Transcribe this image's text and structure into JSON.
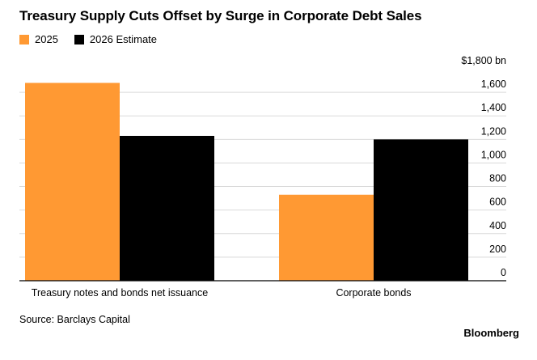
{
  "title": "Treasury Supply Cuts Offset by Surge in Corporate Debt Sales",
  "source": "Source: Barclays Capital",
  "brand": "Bloomberg",
  "colors": {
    "s2025": "#ff9933",
    "s2026": "#000000",
    "grid": "#d9d9d9",
    "axis": "#000000"
  },
  "chart_data": {
    "type": "bar",
    "categories": [
      "Treasury notes and bonds net issuance",
      "Corporate bonds"
    ],
    "series": [
      {
        "name": "2025",
        "values": [
          1680,
          730
        ]
      },
      {
        "name": "2026 Estimate",
        "values": [
          1230,
          1200
        ]
      }
    ],
    "ylim": [
      0,
      1800
    ],
    "unit": "bn",
    "yticks": [
      0,
      200,
      400,
      600,
      800,
      1000,
      1200,
      1400,
      1600,
      1800
    ],
    "ytick_labels": [
      "0",
      "200",
      "400",
      "600",
      "800",
      "1,000",
      "1,200",
      "1,400",
      "1,600",
      "$1,800 bn"
    ],
    "grid": true,
    "legend_position": "top-left"
  }
}
